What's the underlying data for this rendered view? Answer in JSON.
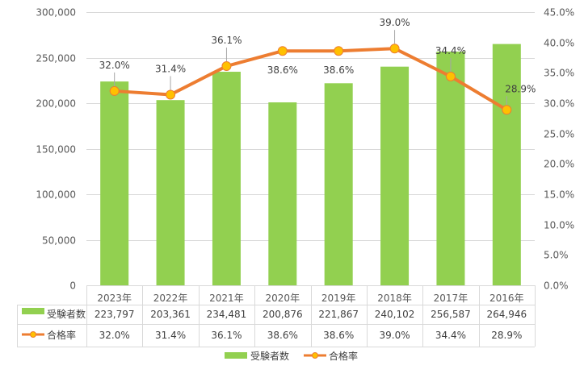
{
  "chart_data": {
    "type": "bar",
    "categories": [
      "2023年",
      "2022年",
      "2021年",
      "2020年",
      "2019年",
      "2018年",
      "2017年",
      "2016年"
    ],
    "series": [
      {
        "name": "受験者数",
        "type": "bar",
        "axis": "left",
        "color": "#92d050",
        "values": [
          223797,
          203361,
          234481,
          200876,
          221867,
          240102,
          256587,
          264946
        ],
        "table_labels": [
          "223,797",
          "203,361",
          "234,481",
          "200,876",
          "221,867",
          "240,102",
          "256,587",
          "264,946"
        ]
      },
      {
        "name": "合格率",
        "type": "line",
        "axis": "right",
        "color": "#ed7d31",
        "marker_color": "#ffc000",
        "values": [
          32.0,
          31.4,
          36.1,
          38.6,
          38.6,
          39.0,
          34.4,
          28.9
        ],
        "data_labels": [
          "32.0%",
          "31.4%",
          "36.1%",
          "38.6%",
          "38.6%",
          "39.0%",
          "34.4%",
          "28.9%"
        ]
      }
    ],
    "y_left": {
      "ylim": [
        0,
        300000
      ],
      "ticks": [
        0,
        50000,
        100000,
        150000,
        200000,
        250000,
        300000
      ],
      "tick_labels": [
        "0",
        "50,000",
        "100,000",
        "150,000",
        "200,000",
        "250,000",
        "300,000"
      ]
    },
    "y_right": {
      "ylim": [
        0,
        45
      ],
      "ticks": [
        0,
        5,
        10,
        15,
        20,
        25,
        30,
        35,
        40,
        45
      ],
      "tick_labels": [
        "0.0%",
        "5.0%",
        "10.0%",
        "15.0%",
        "20.0%",
        "25.0%",
        "30.0%",
        "35.0%",
        "40.0%",
        "45.0%"
      ]
    },
    "grid": true,
    "legend": {
      "position": "bottom",
      "entries": [
        "受験者数",
        "合格率"
      ]
    },
    "data_table": true
  }
}
